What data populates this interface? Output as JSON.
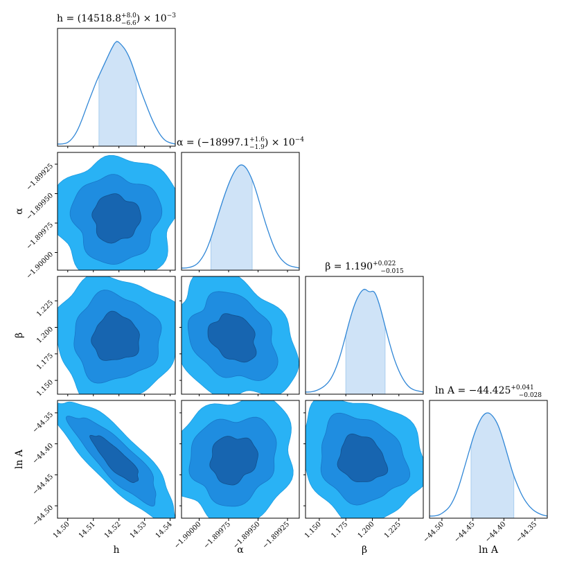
{
  "chart_data": {
    "type": "corner",
    "parameters": [
      {
        "key": "h",
        "axis_label": "h",
        "title": "h = (14518.8 +8.0 −6.6) × 10⁻³",
        "title_parts": {
          "lhs": "h = ",
          "open": "(",
          "value": "14518.8",
          "plus": "+8.0",
          "minus": "−6.6",
          "close": ")",
          "factor": " × 10",
          "exp": "−3"
        },
        "range": [
          14.496,
          14.542
        ],
        "ticks": [
          14.5,
          14.51,
          14.52,
          14.53,
          14.54
        ],
        "tick_labels": [
          "14.50",
          "14.51",
          "14.52",
          "14.53",
          "14.54"
        ],
        "median": 14.5188,
        "interval": [
          14.5122,
          14.5268
        ]
      },
      {
        "key": "alpha",
        "axis_label": "α",
        "title": "α = (−18997.1 +1.6 −1.9) × 10⁻⁴",
        "title_parts": {
          "lhs": "α = ",
          "open": "(",
          "value": "−18997.1",
          "plus": "+1.6",
          "minus": "−1.9",
          "close": ")",
          "factor": " × 10",
          "exp": "−4"
        },
        "range": [
          -1.90015,
          -1.89915
        ],
        "ticks": [
          -1.9,
          -1.89975,
          -1.8995,
          -1.89925
        ],
        "tick_labels": [
          "−1.90000",
          "−1.89975",
          "−1.89950",
          "−1.89925"
        ],
        "median": -1.89971,
        "interval": [
          -1.8999,
          -1.89955
        ]
      },
      {
        "key": "beta",
        "axis_label": "β",
        "title": "β = 1.190 +0.022 −0.015",
        "title_parts": {
          "lhs": "β = ",
          "value": "1.190",
          "plus": "+0.022",
          "minus": "−0.015"
        },
        "range": [
          1.137,
          1.248
        ],
        "ticks": [
          1.15,
          1.175,
          1.2,
          1.225
        ],
        "tick_labels": [
          "1.150",
          "1.175",
          "1.200",
          "1.225"
        ],
        "median": 1.19,
        "interval": [
          1.175,
          1.212
        ]
      },
      {
        "key": "lnA",
        "axis_label": "ln A",
        "title": "ln A = −44.425 +0.041 −0.028",
        "title_parts": {
          "lhs": "ln A = ",
          "value": "−44.425",
          "plus": "+0.041",
          "minus": "−0.028"
        },
        "range": [
          -44.52,
          -44.33
        ],
        "ticks": [
          -44.5,
          -44.45,
          -44.4,
          -44.35
        ],
        "tick_labels": [
          "−44.50",
          "−44.45",
          "−44.40",
          "−44.35"
        ],
        "median": -44.425,
        "interval": [
          -44.453,
          -44.384
        ]
      }
    ],
    "colors": {
      "line": "#2f86d6",
      "band": "#cfe3f7",
      "contour_outer": "#29b2f5",
      "contour_mid": "#1f8de0",
      "contour_inner": "#1765b0"
    },
    "marginals": [
      {
        "param": "h",
        "values": [
          0.02,
          0.02,
          0.03,
          0.07,
          0.14,
          0.25,
          0.38,
          0.5,
          0.62,
          0.72,
          0.82,
          0.92,
          1.0,
          0.96,
          0.9,
          0.8,
          0.66,
          0.52,
          0.4,
          0.28,
          0.18,
          0.1,
          0.05,
          0.03,
          0.02
        ]
      },
      {
        "param": "alpha",
        "values": [
          0.02,
          0.02,
          0.03,
          0.05,
          0.1,
          0.18,
          0.3,
          0.45,
          0.6,
          0.74,
          0.86,
          0.95,
          1.0,
          0.98,
          0.9,
          0.78,
          0.62,
          0.46,
          0.32,
          0.2,
          0.12,
          0.07,
          0.04,
          0.03,
          0.02
        ]
      },
      {
        "param": "beta",
        "values": [
          0.02,
          0.02,
          0.03,
          0.05,
          0.08,
          0.13,
          0.22,
          0.35,
          0.52,
          0.7,
          0.85,
          0.95,
          1.0,
          0.96,
          0.98,
          0.86,
          0.68,
          0.5,
          0.34,
          0.22,
          0.13,
          0.07,
          0.04,
          0.03,
          0.02
        ]
      },
      {
        "param": "lnA",
        "values": [
          0.02,
          0.02,
          0.03,
          0.06,
          0.1,
          0.18,
          0.3,
          0.46,
          0.62,
          0.78,
          0.9,
          0.98,
          1.0,
          0.96,
          0.88,
          0.74,
          0.58,
          0.42,
          0.3,
          0.2,
          0.13,
          0.08,
          0.05,
          0.03,
          0.02
        ]
      }
    ],
    "pairs": [
      {
        "x": "h",
        "y": "alpha",
        "correlation": 0.0
      },
      {
        "x": "h",
        "y": "beta",
        "correlation": 0.0
      },
      {
        "x": "alpha",
        "y": "beta",
        "correlation": -0.25
      },
      {
        "x": "h",
        "y": "lnA",
        "correlation": -0.85
      },
      {
        "x": "alpha",
        "y": "lnA",
        "correlation": 0.1
      },
      {
        "x": "beta",
        "y": "lnA",
        "correlation": -0.15
      }
    ],
    "contour_levels_sigma": [
      1,
      2,
      3
    ],
    "grid": false
  }
}
